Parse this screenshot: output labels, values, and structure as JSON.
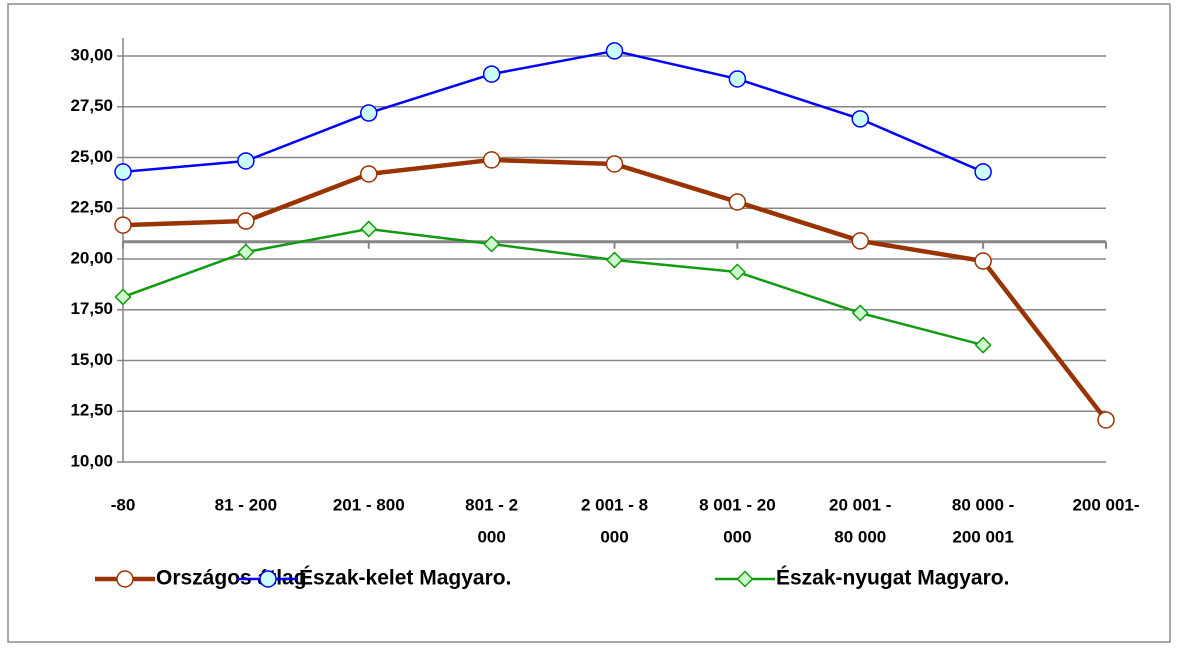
{
  "chart_data": {
    "type": "line",
    "categories": [
      [
        "-80"
      ],
      [
        "81 - 200"
      ],
      [
        "201 - 800"
      ],
      [
        "801 - 2",
        "000"
      ],
      [
        "2 001 - 8",
        "000"
      ],
      [
        "8 001 - 20",
        "000"
      ],
      [
        "20 001 -",
        "80 000"
      ],
      [
        "80 000 -",
        "200 001"
      ],
      [
        "200 001-"
      ]
    ],
    "series": [
      {
        "name": "Országos átlag",
        "color": "#993300",
        "marker": "circle",
        "marker_fill": "#ffffff",
        "values": [
          21.67,
          21.87,
          24.19,
          24.88,
          24.68,
          22.81,
          20.89,
          19.9,
          12.07
        ]
      },
      {
        "name": "Észak-kelet Magyaro.",
        "color": "#0000ff",
        "marker": "circle",
        "marker_fill": "#ccffff",
        "values": [
          24.29,
          24.83,
          27.19,
          29.11,
          30.25,
          28.87,
          26.9,
          24.29,
          null
        ]
      },
      {
        "name": "Észak-nyugat Magyaro.",
        "color": "#139a13",
        "marker": "diamond",
        "marker_fill": "#ccffcc",
        "values": [
          18.13,
          20.34,
          21.48,
          20.74,
          19.95,
          19.36,
          17.34,
          15.76,
          null
        ]
      }
    ],
    "ylim": [
      10,
      30
    ],
    "yticks": [
      {
        "value": 10,
        "label": "10,00"
      },
      {
        "value": 12.5,
        "label": "12,50"
      },
      {
        "value": 15,
        "label": "15,00"
      },
      {
        "value": 17.5,
        "label": "17,50"
      },
      {
        "value": 20,
        "label": "20,00"
      },
      {
        "value": 22.5,
        "label": "22,50"
      },
      {
        "value": 25,
        "label": "25,00"
      },
      {
        "value": 27.5,
        "label": "27,50"
      },
      {
        "value": 30,
        "label": "30,00"
      }
    ],
    "x_axis_crossing": 20.85,
    "grid": true,
    "legend": "bottom"
  }
}
